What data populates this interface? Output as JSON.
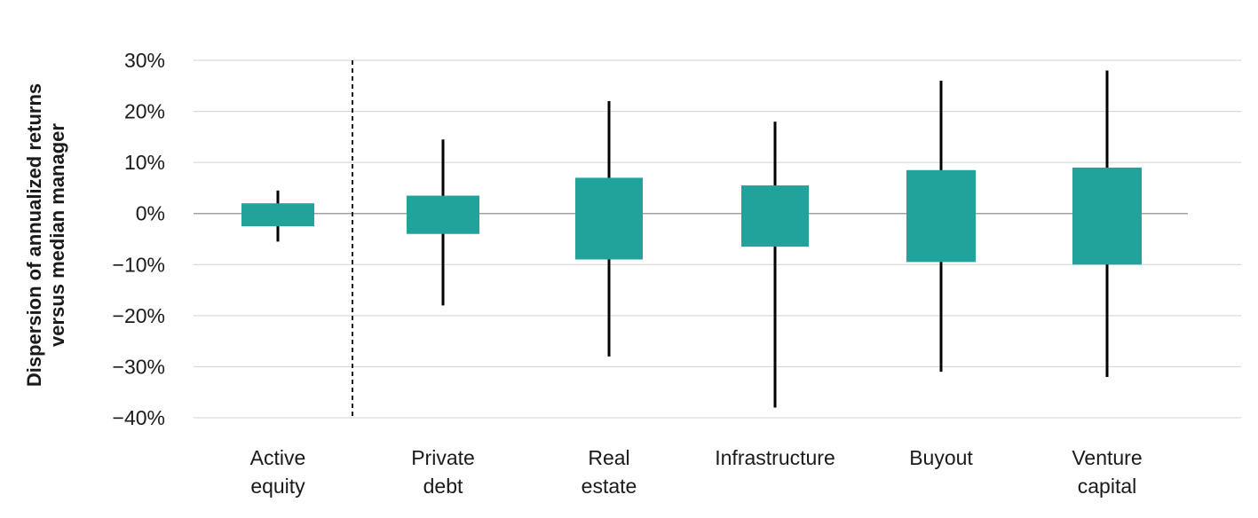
{
  "chart_data": {
    "type": "box",
    "ylabel_lines": [
      "Dispersion of annualized returns",
      "versus median manager"
    ],
    "yticks": [
      "30%",
      "20%",
      "10%",
      "0%",
      "−10%",
      "−20%",
      "−30%",
      "−40%"
    ],
    "ylim": [
      -40,
      30
    ],
    "categories": [
      {
        "name": "Active equity",
        "label_lines": [
          "Active",
          "equity"
        ],
        "box_low": -2.5,
        "box_high": 2.0,
        "whisker_low": -5.5,
        "whisker_high": 4.5
      },
      {
        "name": "Private debt",
        "label_lines": [
          "Private",
          "debt"
        ],
        "box_low": -4.0,
        "box_high": 3.5,
        "whisker_low": -18.0,
        "whisker_high": 14.5
      },
      {
        "name": "Real estate",
        "label_lines": [
          "Real",
          "estate"
        ],
        "box_low": -9.0,
        "box_high": 7.0,
        "whisker_low": -28.0,
        "whisker_high": 22.0
      },
      {
        "name": "Infrastructure",
        "label_lines": [
          "Infrastructure"
        ],
        "box_low": -6.5,
        "box_high": 5.5,
        "whisker_low": -38.0,
        "whisker_high": 18.0
      },
      {
        "name": "Buyout",
        "label_lines": [
          "Buyout"
        ],
        "box_low": -9.5,
        "box_high": 8.5,
        "whisker_low": -31.0,
        "whisker_high": 26.0
      },
      {
        "name": "Venture capital",
        "label_lines": [
          "Venture",
          "capital"
        ],
        "box_low": -10.0,
        "box_high": 9.0,
        "whisker_low": -32.0,
        "whisker_high": 28.0
      }
    ],
    "separator_after_category": 0,
    "grid": true,
    "colors": {
      "box": "#21a39c",
      "whisker": "#000000",
      "grid": "#d0d0d0",
      "zero_line": "#a0a0a0",
      "separator": "#1a1a1a"
    }
  }
}
